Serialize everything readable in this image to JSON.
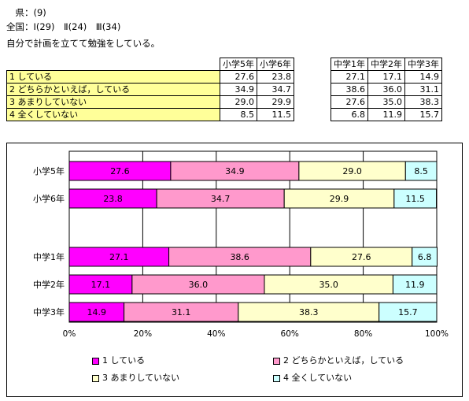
{
  "header": {
    "line1": "　県：(9)",
    "line2": "全国：Ⅰ(29)　Ⅱ(24)　Ⅲ(34)",
    "question": "自分で計画を立てて勉強をしている。"
  },
  "table": {
    "headers_left": [
      "小学5年",
      "小学6年"
    ],
    "headers_right": [
      "中学1年",
      "中学2年",
      "中学3年"
    ],
    "rows": [
      {
        "label": "1 している",
        "values": [
          "27.6",
          "23.8",
          "27.1",
          "17.1",
          "14.9"
        ]
      },
      {
        "label": "2 どちらかといえば，している",
        "values": [
          "34.9",
          "34.7",
          "38.6",
          "36.0",
          "31.1"
        ]
      },
      {
        "label": "3 あまりしていない",
        "values": [
          "29.0",
          "29.9",
          "27.6",
          "35.0",
          "38.3"
        ]
      },
      {
        "label": "4 全くしていない",
        "values": [
          "8.5",
          "11.5",
          "6.8",
          "11.9",
          "15.7"
        ]
      }
    ]
  },
  "chart_data": {
    "type": "bar",
    "orientation": "horizontal",
    "stacked": "percent",
    "categories": [
      "小学5年",
      "小学6年",
      "",
      "中学1年",
      "中学2年",
      "中学3年"
    ],
    "series": [
      {
        "name": "1 している",
        "color": "#ff00ff",
        "values": [
          27.6,
          23.8,
          null,
          27.1,
          17.1,
          14.9
        ]
      },
      {
        "name": "2 どちらかといえば，している",
        "color": "#ff99cc",
        "values": [
          34.9,
          34.7,
          null,
          38.6,
          36.0,
          31.1
        ]
      },
      {
        "name": "3 あまりしていない",
        "color": "#ffffcc",
        "values": [
          29.0,
          29.9,
          null,
          27.6,
          35.0,
          38.3
        ]
      },
      {
        "name": "4 全くしていない",
        "color": "#ccffff",
        "values": [
          8.5,
          11.5,
          null,
          6.8,
          11.9,
          15.7
        ]
      }
    ],
    "xlim": [
      0,
      100
    ],
    "xticks": [
      "0%",
      "20%",
      "40%",
      "60%",
      "80%",
      "100%"
    ],
    "grid": true,
    "legend_position": "bottom"
  }
}
